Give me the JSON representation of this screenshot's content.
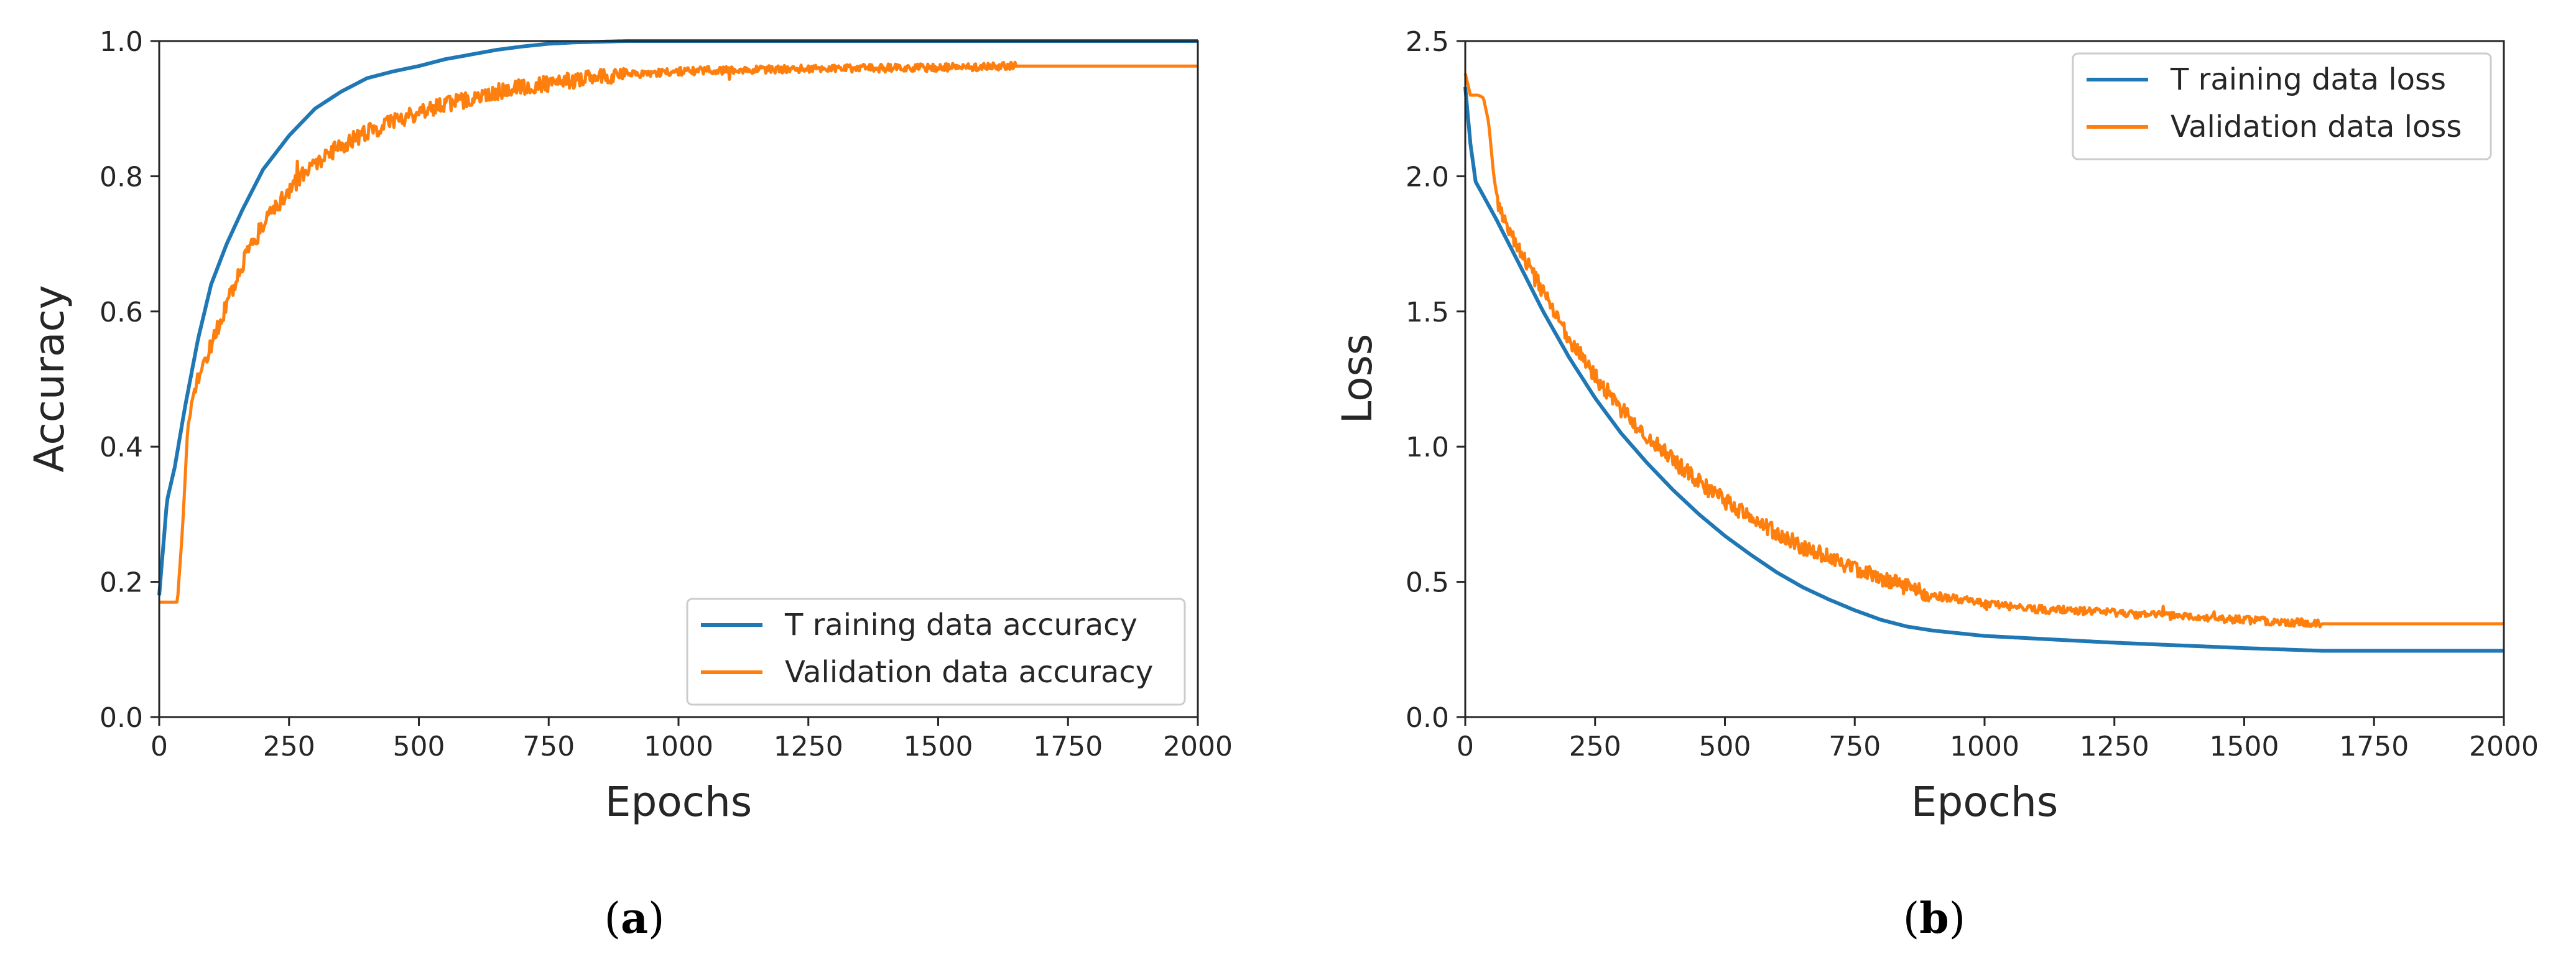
{
  "colors": {
    "training": "#1f77b4",
    "validation": "#ff7f0e",
    "axis": "#262626",
    "legend_border": "#cccccc"
  },
  "chart_data": [
    {
      "type": "line",
      "panel": "a",
      "caption": {
        "open": "(",
        "letter": "a",
        "close": ")"
      },
      "xlabel": "Epochs",
      "ylabel": "Accuracy",
      "xlim": [
        0,
        2000
      ],
      "ylim": [
        0.0,
        1.0
      ],
      "xticks": [
        0,
        250,
        500,
        750,
        1000,
        1250,
        1500,
        1750,
        2000
      ],
      "yticks": [
        0.0,
        0.2,
        0.4,
        0.6,
        0.8,
        1.0
      ],
      "ytick_labels": [
        "0.0",
        "0.2",
        "0.4",
        "0.6",
        "0.8",
        "1.0"
      ],
      "grid": false,
      "legend_position": "lower-right",
      "series": [
        {
          "name": "T raining data accuracy",
          "color_key": "training",
          "x": [
            0,
            15,
            30,
            50,
            75,
            100,
            130,
            160,
            200,
            250,
            300,
            350,
            400,
            450,
            500,
            550,
            600,
            650,
            700,
            750,
            800,
            850,
            900,
            950,
            1000,
            1100,
            1250,
            1500,
            1750,
            2000
          ],
          "y": [
            0.18,
            0.32,
            0.37,
            0.46,
            0.56,
            0.64,
            0.7,
            0.75,
            0.81,
            0.86,
            0.9,
            0.925,
            0.945,
            0.955,
            0.963,
            0.973,
            0.98,
            0.987,
            0.992,
            0.996,
            0.998,
            0.999,
            1.0,
            1.0,
            1.0,
            1.0,
            1.0,
            1.0,
            1.0,
            1.0
          ]
        },
        {
          "name": "Validation data accuracy",
          "color_key": "validation",
          "x": [
            0,
            20,
            35,
            45,
            55,
            75,
            100,
            130,
            160,
            200,
            250,
            300,
            350,
            400,
            450,
            500,
            550,
            600,
            650,
            700,
            750,
            800,
            850,
            900,
            1000,
            1100,
            1250,
            1400,
            1500,
            1600,
            1650,
            1750,
            2000
          ],
          "y": [
            0.17,
            0.17,
            0.17,
            0.28,
            0.43,
            0.5,
            0.55,
            0.61,
            0.67,
            0.73,
            0.78,
            0.82,
            0.845,
            0.865,
            0.88,
            0.895,
            0.905,
            0.915,
            0.925,
            0.932,
            0.937,
            0.942,
            0.947,
            0.951,
            0.955,
            0.957,
            0.959,
            0.96,
            0.961,
            0.962,
            0.963,
            0.963,
            0.963
          ]
        }
      ]
    },
    {
      "type": "line",
      "panel": "b",
      "caption": {
        "open": "(",
        "letter": "b",
        "close": ")"
      },
      "xlabel": "Epochs",
      "ylabel": "Loss",
      "xlim": [
        0,
        2000
      ],
      "ylim": [
        0.0,
        2.5
      ],
      "xticks": [
        0,
        250,
        500,
        750,
        1000,
        1250,
        1500,
        1750,
        2000
      ],
      "yticks": [
        0.0,
        0.5,
        1.0,
        1.5,
        2.0,
        2.5
      ],
      "ytick_labels": [
        "0.0",
        "0.5",
        "1.0",
        "1.5",
        "2.0",
        "2.5"
      ],
      "grid": false,
      "legend_position": "upper-right",
      "series": [
        {
          "name": "T raining data loss",
          "color_key": "training",
          "x": [
            0,
            10,
            20,
            40,
            60,
            100,
            150,
            200,
            250,
            300,
            350,
            400,
            450,
            500,
            550,
            600,
            650,
            700,
            750,
            800,
            850,
            900,
            1000,
            1100,
            1250,
            1500,
            1650,
            1750,
            2000
          ],
          "y": [
            2.33,
            2.12,
            1.98,
            1.91,
            1.84,
            1.69,
            1.5,
            1.33,
            1.18,
            1.05,
            0.94,
            0.84,
            0.75,
            0.67,
            0.6,
            0.535,
            0.48,
            0.435,
            0.395,
            0.36,
            0.335,
            0.32,
            0.3,
            0.29,
            0.275,
            0.255,
            0.245,
            0.245,
            0.245
          ]
        },
        {
          "name": "Validation data loss",
          "color_key": "validation",
          "x": [
            0,
            10,
            25,
            35,
            45,
            55,
            65,
            80,
            100,
            150,
            200,
            250,
            300,
            350,
            400,
            450,
            500,
            550,
            600,
            650,
            700,
            750,
            800,
            850,
            900,
            1000,
            1100,
            1250,
            1400,
            1500,
            1600,
            1650,
            1750,
            2000
          ],
          "y": [
            2.38,
            2.3,
            2.3,
            2.29,
            2.2,
            2.0,
            1.88,
            1.82,
            1.74,
            1.57,
            1.4,
            1.26,
            1.14,
            1.04,
            0.95,
            0.87,
            0.8,
            0.74,
            0.68,
            0.63,
            0.59,
            0.55,
            0.515,
            0.48,
            0.45,
            0.42,
            0.4,
            0.385,
            0.37,
            0.36,
            0.35,
            0.345,
            0.345,
            0.345
          ]
        }
      ]
    }
  ]
}
